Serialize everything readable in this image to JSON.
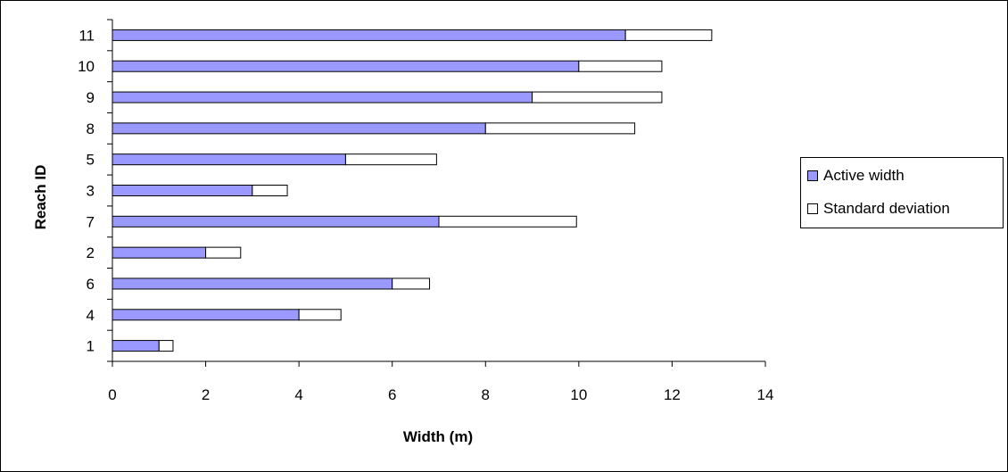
{
  "chart_data": {
    "type": "bar",
    "orientation": "horizontal",
    "stacked": true,
    "categories": [
      "1",
      "4",
      "6",
      "2",
      "7",
      "3",
      "5",
      "8",
      "9",
      "10",
      "11"
    ],
    "series": [
      {
        "name": "Active width",
        "color": "#9999ff",
        "values": [
          1,
          4,
          6,
          2,
          7,
          3,
          5,
          8,
          9,
          10,
          11
        ]
      },
      {
        "name": "Standard deviation",
        "color": "#ffffff",
        "values": [
          0.3,
          0.9,
          0.8,
          0.75,
          2.95,
          0.75,
          1.95,
          3.2,
          2.78,
          1.78,
          1.85
        ]
      }
    ],
    "title": "",
    "xlabel": "Width (m)",
    "ylabel": "Reach ID",
    "xlim": [
      0,
      14
    ],
    "xticks": [
      "0",
      "2",
      "4",
      "6",
      "8",
      "10",
      "12",
      "14"
    ],
    "grid": false,
    "legend_position": "right"
  }
}
